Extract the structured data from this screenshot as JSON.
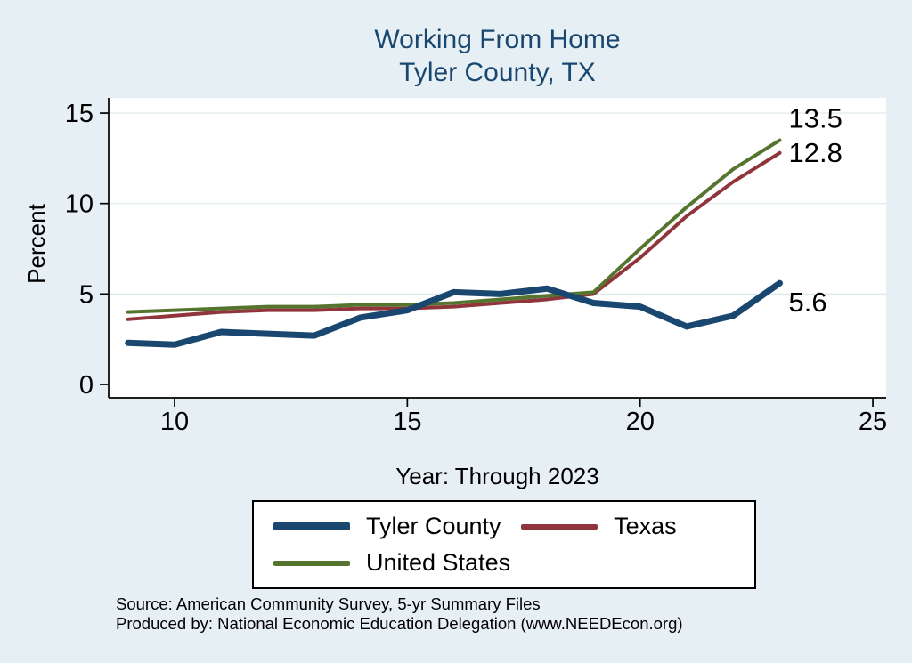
{
  "colors": {
    "background": "#e6eff4",
    "plot_background": "#ffffff",
    "grid": "#dde8ee",
    "axis": "#000000",
    "title": "#1a476f"
  },
  "chart_data": {
    "type": "line",
    "title_line1": "Working From Home",
    "title_line2": "Tyler County, TX",
    "xlabel": "Year: Through 2023",
    "ylabel": "Percent",
    "x": [
      9,
      10,
      11,
      12,
      13,
      14,
      15,
      16,
      17,
      18,
      19,
      20,
      21,
      22,
      23
    ],
    "xticks": [
      10,
      15,
      20,
      25
    ],
    "yticks": [
      0,
      5,
      10,
      15
    ],
    "xlim": [
      8.6,
      25.3
    ],
    "ylim": [
      0,
      15
    ],
    "grid": "horizontal",
    "legend_position": "below",
    "series": [
      {
        "name": "Tyler County",
        "color": "#1a476f",
        "width": 7,
        "values": [
          2.3,
          2.2,
          2.9,
          2.8,
          2.7,
          3.7,
          4.1,
          5.1,
          5.0,
          5.3,
          4.5,
          4.3,
          3.2,
          3.8,
          5.6
        ],
        "end_label": "5.6",
        "label_dy": 32
      },
      {
        "name": "Texas",
        "color": "#90353b",
        "width": 4,
        "values": [
          3.6,
          3.8,
          4.0,
          4.1,
          4.1,
          4.2,
          4.2,
          4.3,
          4.5,
          4.7,
          5.0,
          7.0,
          9.3,
          11.2,
          12.8
        ],
        "end_label": "12.8",
        "label_dy": 10
      },
      {
        "name": "United States",
        "color": "#55752f",
        "width": 4,
        "values": [
          4.0,
          4.1,
          4.2,
          4.3,
          4.3,
          4.4,
          4.4,
          4.5,
          4.7,
          4.9,
          5.1,
          7.5,
          9.8,
          11.9,
          13.5
        ],
        "end_label": "13.5",
        "label_dy": -14
      }
    ],
    "source_line1": "Source: American Community Survey, 5-yr Summary Files",
    "source_line2": "Produced by: National Economic Education Delegation (www.NEEDEcon.org)"
  }
}
